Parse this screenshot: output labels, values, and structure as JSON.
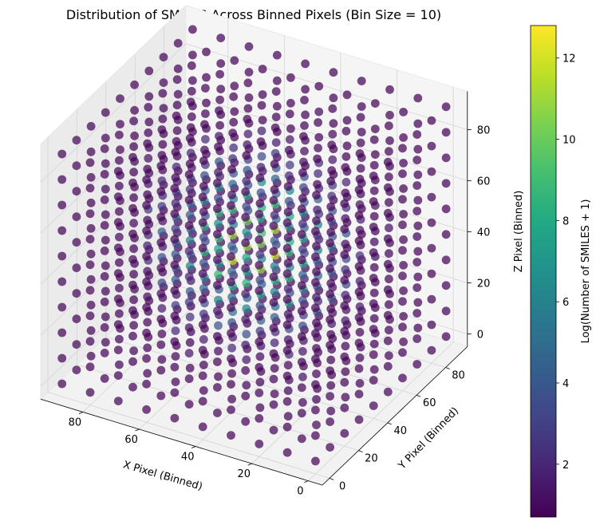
{
  "chart_data": {
    "type": "scatter",
    "title": "Distribution of SMILES Across Binned Pixels (Bin Size = 10)",
    "xlabel": "X Pixel (Binned)",
    "ylabel": "Y Pixel (Binned)",
    "zlabel": "Z Pixel (Binned)",
    "colorbar_label": "Log(Number of SMILES + 1)",
    "colormap": "viridis",
    "x_ticks": [
      0,
      20,
      40,
      60,
      80
    ],
    "y_ticks": [
      0,
      20,
      40,
      60,
      80
    ],
    "z_ticks": [
      0,
      20,
      40,
      60,
      80
    ],
    "colorbar_ticks": [
      2,
      4,
      6,
      8,
      10,
      12
    ],
    "xlim": [
      -5,
      95
    ],
    "ylim": [
      -5,
      95
    ],
    "zlim": [
      -5,
      95
    ],
    "clim": [
      0.7,
      12.8
    ],
    "grid": true,
    "bin_size": 10,
    "bins": [
      0,
      10,
      20,
      30,
      40,
      50,
      60,
      70,
      80,
      90
    ],
    "value_model": {
      "description": "log count per bin, peaking at the grid center",
      "center": [
        45,
        45,
        45
      ],
      "peak": 12.5,
      "falloff": 0.00141,
      "min": 0.8
    }
  }
}
